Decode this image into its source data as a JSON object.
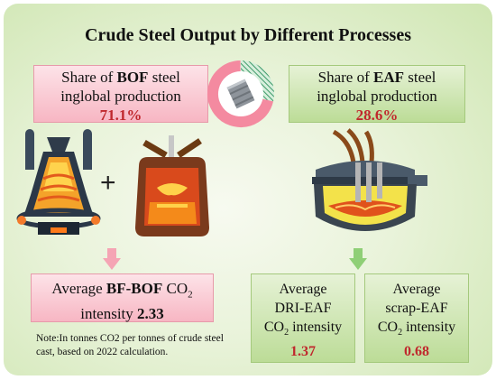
{
  "title": "Crude Steel Output by Different Processes",
  "bof_share": {
    "prefix": "Share of ",
    "process": "BOF",
    "suffix": " steel",
    "line2": "inglobal production",
    "value": "71.1%"
  },
  "eaf_share": {
    "prefix": "Share of ",
    "process": "EAF",
    "suffix": " steel",
    "line2": "inglobal production",
    "value": "28.6%"
  },
  "plus": "+",
  "bfbof": {
    "prefix": "Average ",
    "process": "BF-BOF",
    "suffix": " CO",
    "sub": "2",
    "line2": "intensity ",
    "value": "2.33"
  },
  "dri": {
    "line1": "Average",
    "line2": "DRI-EAF",
    "co": "CO",
    "sub": "2",
    "line3_suffix": " intensity",
    "value": "1.37"
  },
  "scrap": {
    "line1": "Average",
    "line2": "scrap-EAF",
    "co": "CO",
    "sub": "2",
    "line3_suffix": " intensity",
    "value": "0.68"
  },
  "note": "Note:In tonnes CO2 per tonnes of crude steel cast, based on 2022 calculation.",
  "share_ring": {
    "bof_fraction": 0.711,
    "eaf_fraction": 0.286
  },
  "colors": {
    "bof_accent": "#f48aa0",
    "eaf_accent": "#74b98a",
    "value_red": "#c0282d",
    "arrow_pink": "#f5a4b4",
    "arrow_green": "#8fcf76"
  }
}
